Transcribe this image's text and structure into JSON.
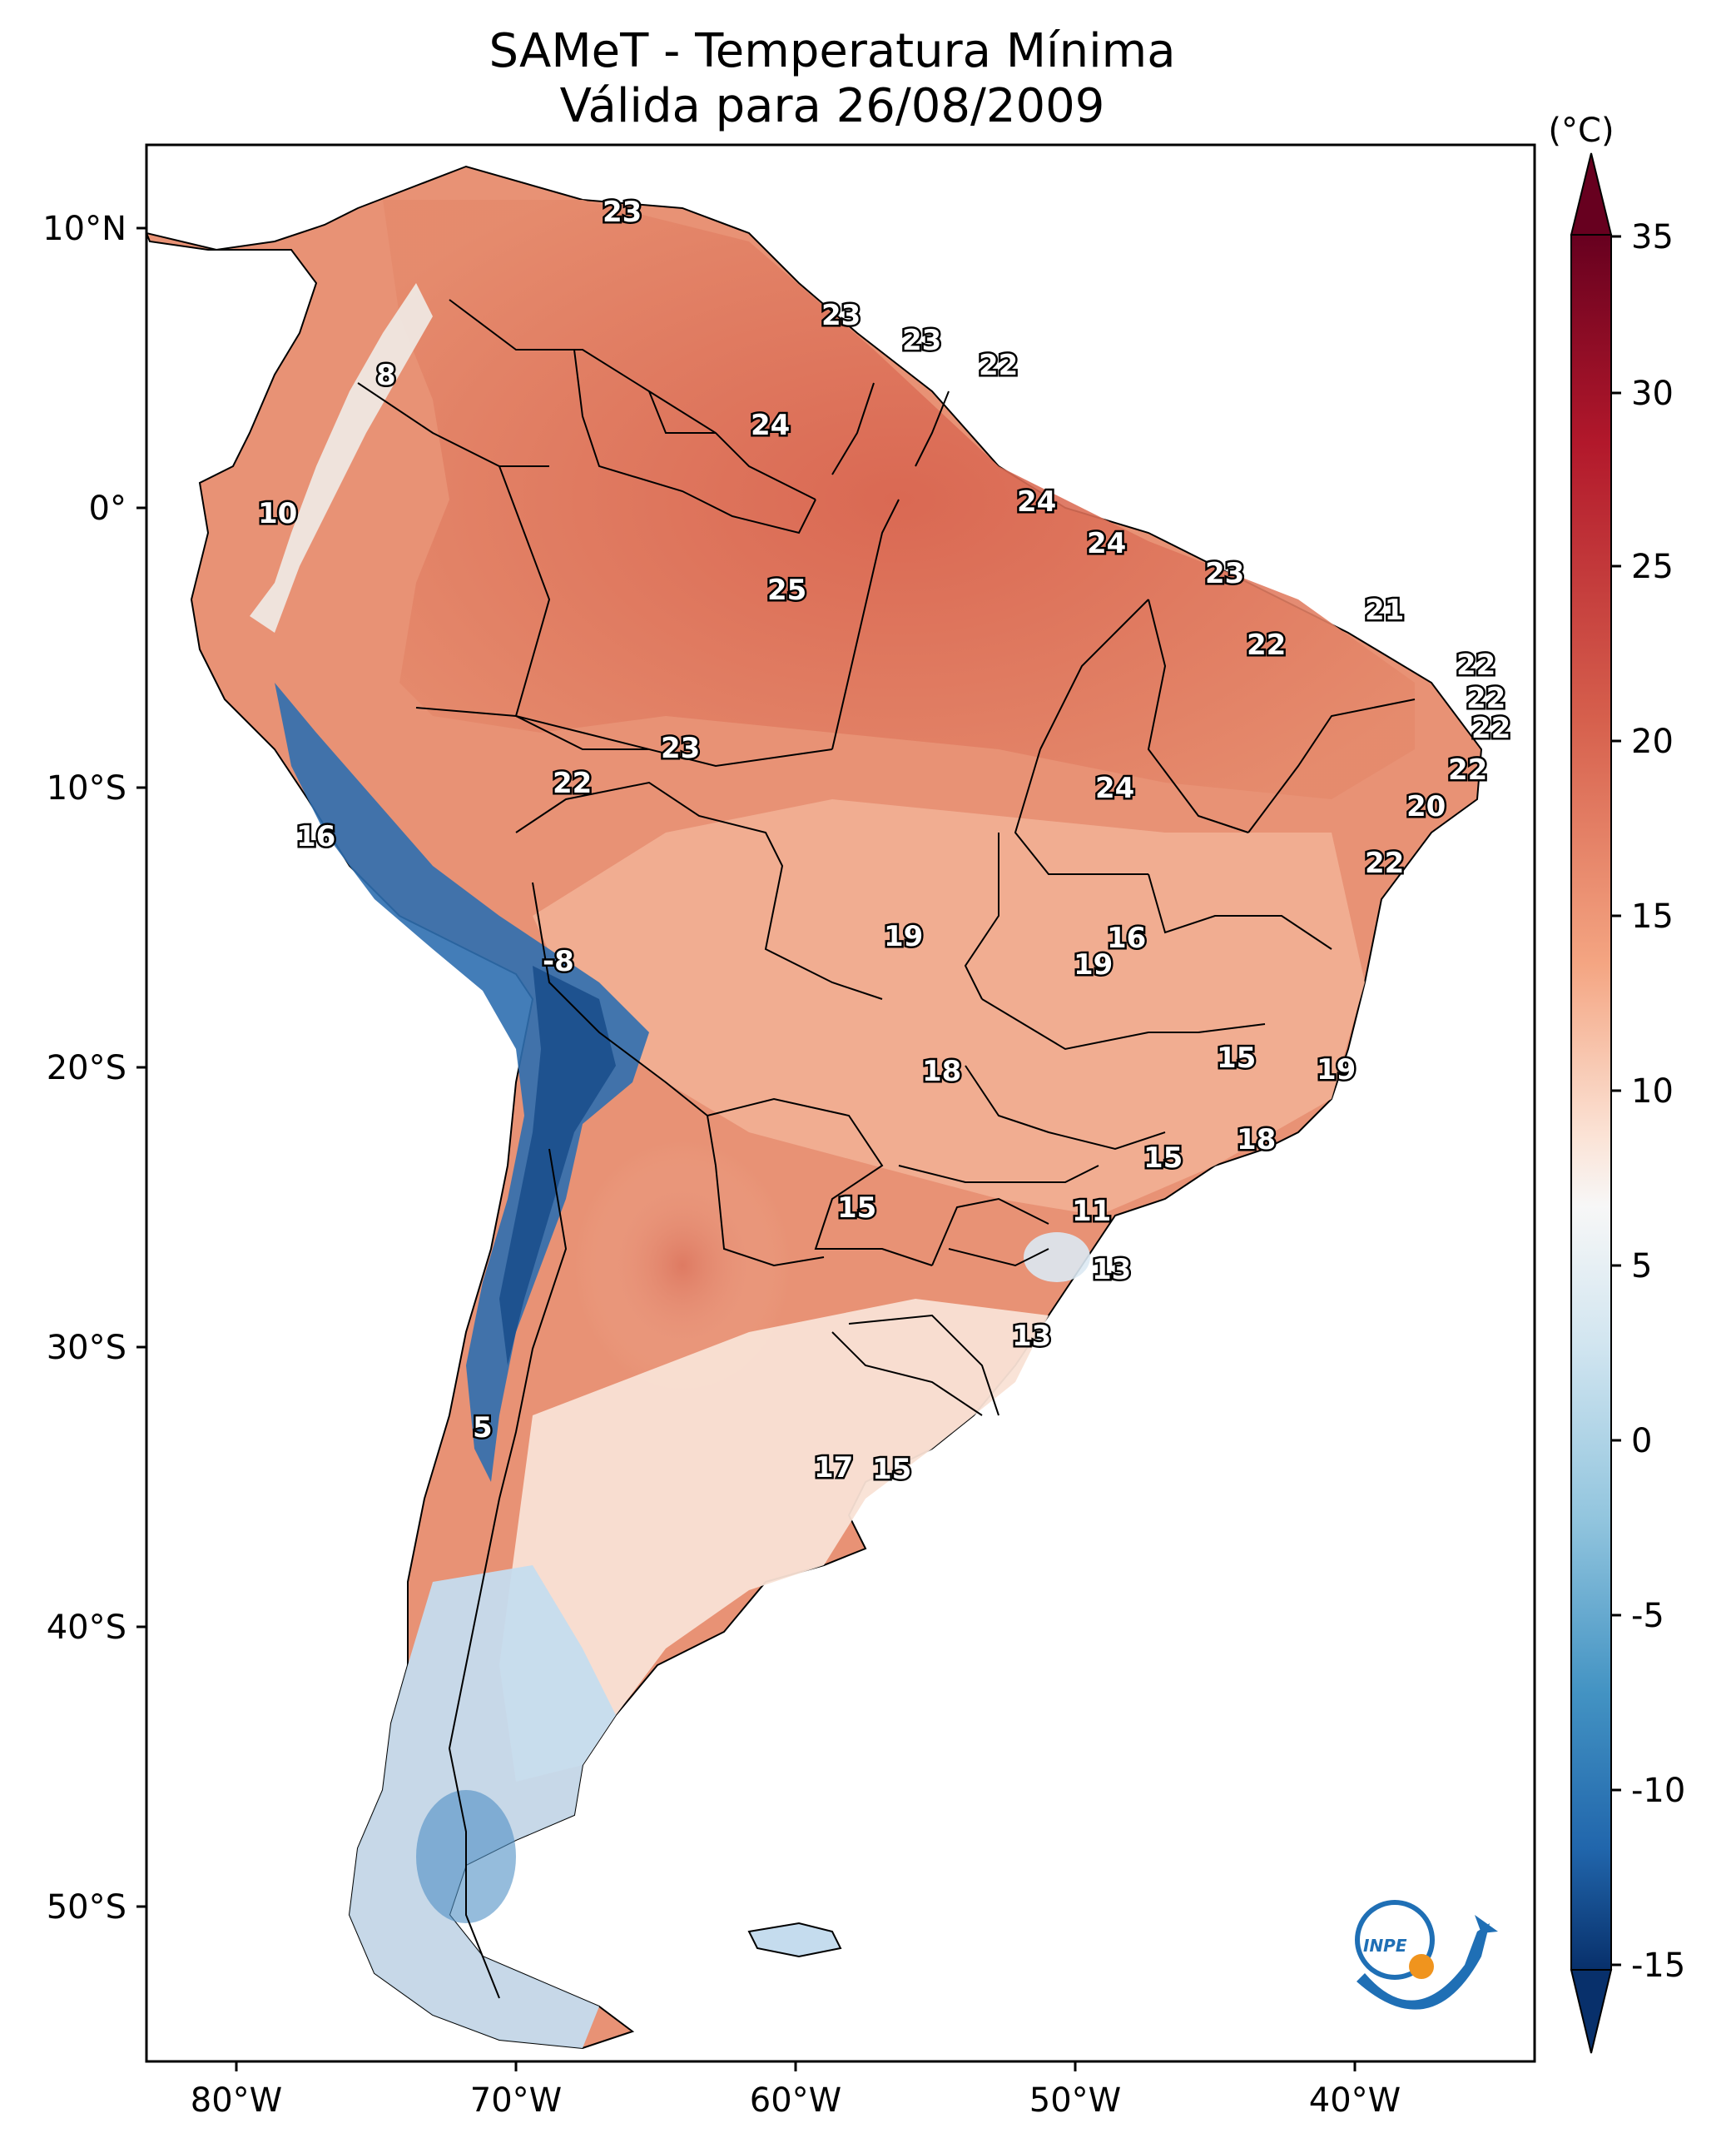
{
  "title": {
    "line1": "SAMeT - Temperatura Mínima",
    "line2": "Válida para 26/08/2009"
  },
  "axes": {
    "lat_ticks": [
      "10°N",
      "0°",
      "10°S",
      "20°S",
      "30°S",
      "40°S",
      "50°S"
    ],
    "lon_ticks": [
      "80°W",
      "70°W",
      "60°W",
      "50°W",
      "40°W"
    ]
  },
  "colorbar": {
    "unit": "(°C)",
    "ticks": [
      "35",
      "30",
      "25",
      "20",
      "15",
      "10",
      "5",
      "0",
      "-5",
      "-10",
      "-15"
    ],
    "colors": {
      "min": "#08306b",
      "low": "#2c7bb6",
      "mid": "#f7f7f7",
      "high": "#d6604d",
      "max": "#67001f"
    }
  },
  "logo": {
    "text": "INPE",
    "ring_color": "#1f6fb5",
    "dot_color": "#f0941e"
  },
  "station_values": [
    "23",
    "8",
    "23",
    "23",
    "22",
    "24",
    "10",
    "24",
    "24",
    "25",
    "23",
    "21",
    "22",
    "22",
    "22",
    "22",
    "23",
    "22",
    "22",
    "16",
    "24",
    "20",
    "22",
    "-8",
    "19",
    "16",
    "19",
    "15",
    "19",
    "18",
    "18",
    "15",
    "15",
    "11",
    "13",
    "13",
    "5",
    "17",
    "15"
  ],
  "map_colors": {
    "north_warm": "#d8644f",
    "tropical": "#e58a6c",
    "central": "#f2b196",
    "south_light": "#f7dccf",
    "andes_cold": "#2f6fb0",
    "andes_deep": "#1b4f8c",
    "patagonia": "#c5dcee",
    "ocean": "#ffffff"
  }
}
